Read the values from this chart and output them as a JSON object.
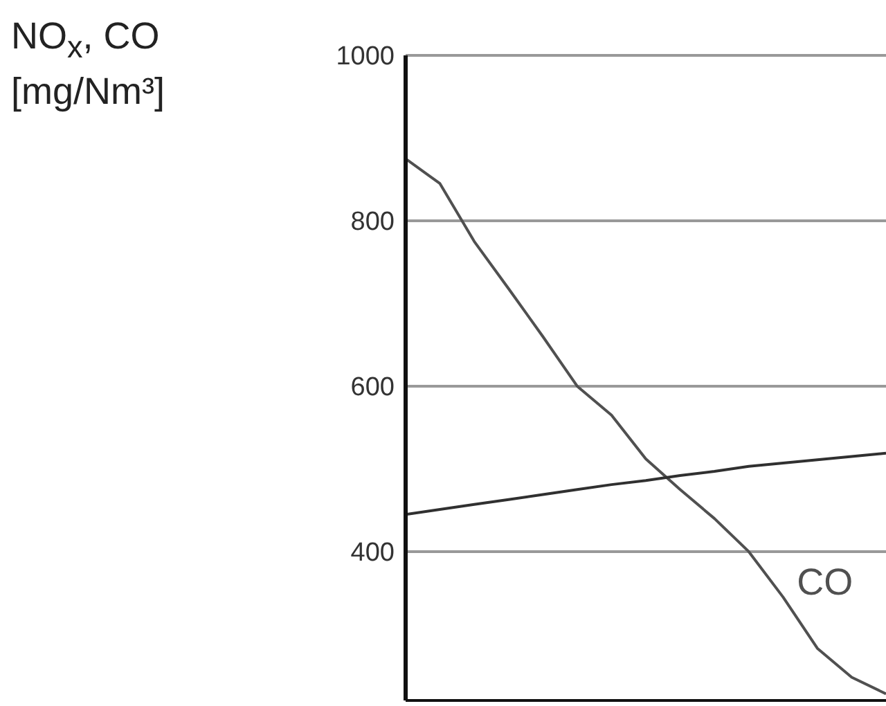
{
  "chart_data": {
    "type": "line",
    "ylabel": "NO$_{x}$, CO [mg/Nm³]",
    "categories": [
      null,
      null,
      null,
      null,
      null,
      null,
      null,
      null,
      null,
      null,
      null,
      null,
      null,
      null,
      null
    ],
    "ylim": [
      220,
      1000
    ],
    "yticks": [
      400,
      600,
      800,
      1000
    ],
    "tick_labels": "y",
    "grid": true,
    "marker": "none",
    "line_style": "solid",
    "series": [
      {
        "name": "CO",
        "color": "#505050",
        "values": [
          875,
          845,
          775,
          718,
          660,
          600,
          565,
          512,
          475,
          440,
          400,
          345,
          283,
          248,
          228
        ]
      },
      {
        "color": "#303030",
        "values": [
          445,
          451,
          457,
          463,
          469,
          475,
          481,
          486,
          492,
          497,
          503,
          507,
          511,
          515,
          519
        ]
      }
    ]
  }
}
